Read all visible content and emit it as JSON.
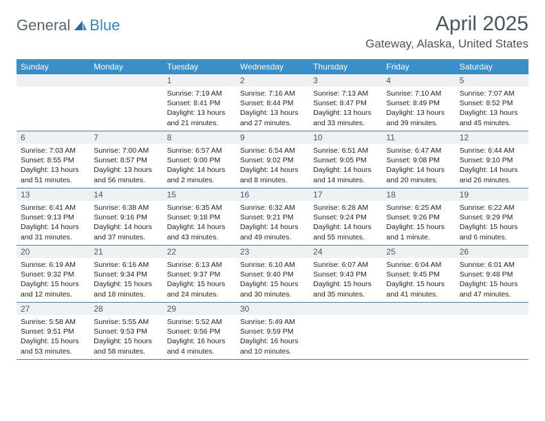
{
  "logo": {
    "text1": "General",
    "text2": "Blue"
  },
  "title": "April 2025",
  "location": "Gateway, Alaska, United States",
  "header_bg": "#3b8fc9",
  "daynum_bg": "#eef1f3",
  "text_color": "#4a5560",
  "dayNames": [
    "Sunday",
    "Monday",
    "Tuesday",
    "Wednesday",
    "Thursday",
    "Friday",
    "Saturday"
  ],
  "weeks": [
    [
      null,
      null,
      {
        "n": "1",
        "sunrise": "7:19 AM",
        "sunset": "8:41 PM",
        "daylight": "13 hours and 21 minutes."
      },
      {
        "n": "2",
        "sunrise": "7:16 AM",
        "sunset": "8:44 PM",
        "daylight": "13 hours and 27 minutes."
      },
      {
        "n": "3",
        "sunrise": "7:13 AM",
        "sunset": "8:47 PM",
        "daylight": "13 hours and 33 minutes."
      },
      {
        "n": "4",
        "sunrise": "7:10 AM",
        "sunset": "8:49 PM",
        "daylight": "13 hours and 39 minutes."
      },
      {
        "n": "5",
        "sunrise": "7:07 AM",
        "sunset": "8:52 PM",
        "daylight": "13 hours and 45 minutes."
      }
    ],
    [
      {
        "n": "6",
        "sunrise": "7:03 AM",
        "sunset": "8:55 PM",
        "daylight": "13 hours and 51 minutes."
      },
      {
        "n": "7",
        "sunrise": "7:00 AM",
        "sunset": "8:57 PM",
        "daylight": "13 hours and 56 minutes."
      },
      {
        "n": "8",
        "sunrise": "6:57 AM",
        "sunset": "9:00 PM",
        "daylight": "14 hours and 2 minutes."
      },
      {
        "n": "9",
        "sunrise": "6:54 AM",
        "sunset": "9:02 PM",
        "daylight": "14 hours and 8 minutes."
      },
      {
        "n": "10",
        "sunrise": "6:51 AM",
        "sunset": "9:05 PM",
        "daylight": "14 hours and 14 minutes."
      },
      {
        "n": "11",
        "sunrise": "6:47 AM",
        "sunset": "9:08 PM",
        "daylight": "14 hours and 20 minutes."
      },
      {
        "n": "12",
        "sunrise": "6:44 AM",
        "sunset": "9:10 PM",
        "daylight": "14 hours and 26 minutes."
      }
    ],
    [
      {
        "n": "13",
        "sunrise": "6:41 AM",
        "sunset": "9:13 PM",
        "daylight": "14 hours and 31 minutes."
      },
      {
        "n": "14",
        "sunrise": "6:38 AM",
        "sunset": "9:16 PM",
        "daylight": "14 hours and 37 minutes."
      },
      {
        "n": "15",
        "sunrise": "6:35 AM",
        "sunset": "9:18 PM",
        "daylight": "14 hours and 43 minutes."
      },
      {
        "n": "16",
        "sunrise": "6:32 AM",
        "sunset": "9:21 PM",
        "daylight": "14 hours and 49 minutes."
      },
      {
        "n": "17",
        "sunrise": "6:28 AM",
        "sunset": "9:24 PM",
        "daylight": "14 hours and 55 minutes."
      },
      {
        "n": "18",
        "sunrise": "6:25 AM",
        "sunset": "9:26 PM",
        "daylight": "15 hours and 1 minute."
      },
      {
        "n": "19",
        "sunrise": "6:22 AM",
        "sunset": "9:29 PM",
        "daylight": "15 hours and 6 minutes."
      }
    ],
    [
      {
        "n": "20",
        "sunrise": "6:19 AM",
        "sunset": "9:32 PM",
        "daylight": "15 hours and 12 minutes."
      },
      {
        "n": "21",
        "sunrise": "6:16 AM",
        "sunset": "9:34 PM",
        "daylight": "15 hours and 18 minutes."
      },
      {
        "n": "22",
        "sunrise": "6:13 AM",
        "sunset": "9:37 PM",
        "daylight": "15 hours and 24 minutes."
      },
      {
        "n": "23",
        "sunrise": "6:10 AM",
        "sunset": "9:40 PM",
        "daylight": "15 hours and 30 minutes."
      },
      {
        "n": "24",
        "sunrise": "6:07 AM",
        "sunset": "9:43 PM",
        "daylight": "15 hours and 35 minutes."
      },
      {
        "n": "25",
        "sunrise": "6:04 AM",
        "sunset": "9:45 PM",
        "daylight": "15 hours and 41 minutes."
      },
      {
        "n": "26",
        "sunrise": "6:01 AM",
        "sunset": "9:48 PM",
        "daylight": "15 hours and 47 minutes."
      }
    ],
    [
      {
        "n": "27",
        "sunrise": "5:58 AM",
        "sunset": "9:51 PM",
        "daylight": "15 hours and 53 minutes."
      },
      {
        "n": "28",
        "sunrise": "5:55 AM",
        "sunset": "9:53 PM",
        "daylight": "15 hours and 58 minutes."
      },
      {
        "n": "29",
        "sunrise": "5:52 AM",
        "sunset": "9:56 PM",
        "daylight": "16 hours and 4 minutes."
      },
      {
        "n": "30",
        "sunrise": "5:49 AM",
        "sunset": "9:59 PM",
        "daylight": "16 hours and 10 minutes."
      },
      null,
      null,
      null
    ]
  ]
}
